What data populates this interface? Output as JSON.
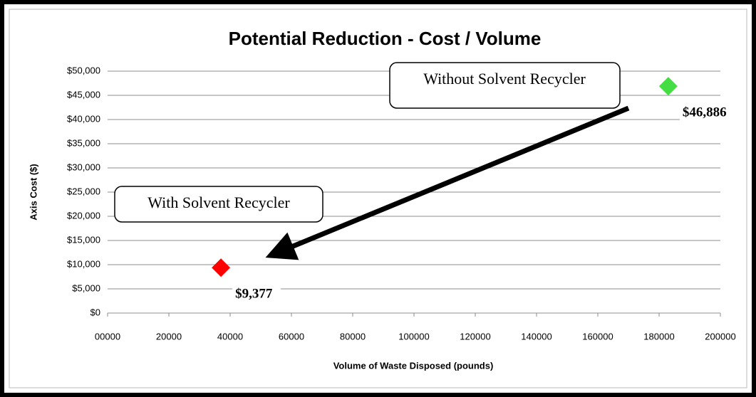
{
  "chart_data": {
    "type": "scatter",
    "title": "Potential Reduction  - Cost / Volume",
    "x_label": "Volume of Waste Disposed (pounds)",
    "y_label": "Axis Cost ($)",
    "x": [
      37000,
      183000
    ],
    "values": [
      9377,
      46886
    ],
    "value_labels": [
      "$9,377",
      "$46,886"
    ],
    "colors": [
      "#ff0000",
      "#44dd44"
    ],
    "xlim": [
      0,
      200000
    ],
    "xticks": [
      {
        "value": 0,
        "label": "00000"
      },
      20000,
      40000,
      60000,
      80000,
      100000,
      120000,
      140000,
      160000,
      180000,
      200000
    ],
    "ylim": [
      0,
      50000
    ],
    "yticks": [
      {
        "value": 0,
        "label": "$0"
      },
      {
        "value": 5000,
        "label": "$5,000"
      },
      {
        "value": 10000,
        "label": "$10,000"
      },
      {
        "value": 15000,
        "label": "$15,000"
      },
      {
        "value": 20000,
        "label": "$20,000"
      },
      {
        "value": 25000,
        "label": "$25,000"
      },
      {
        "value": 30000,
        "label": "$30,000"
      },
      {
        "value": 35000,
        "label": "$35,000"
      },
      {
        "value": 40000,
        "label": "$40,000"
      },
      {
        "value": 45000,
        "label": "$45,000"
      },
      {
        "value": 50000,
        "label": "$50,000"
      }
    ],
    "grid": true,
    "annotations": [
      "Without Solvent Recycler",
      "With Solvent Recycler"
    ]
  }
}
